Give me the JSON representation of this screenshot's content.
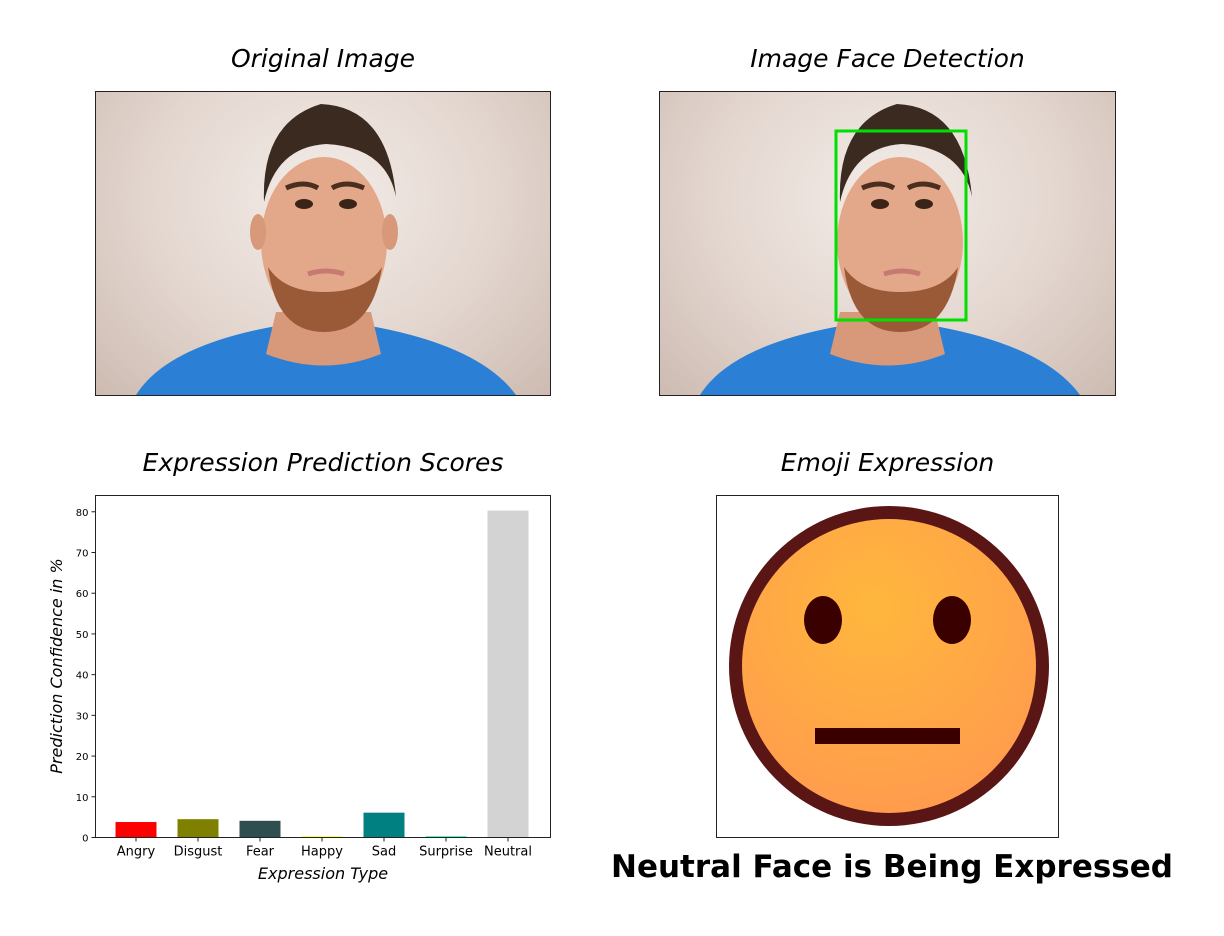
{
  "titles": {
    "original": "Original Image",
    "detection": "Image Face Detection",
    "scores": "Expression Prediction Scores",
    "emoji": "Emoji Expression"
  },
  "result_caption": "Neutral Face is Being Expressed",
  "colors": {
    "detection_box": "#00e000",
    "emoji_face": "#ffa84a",
    "emoji_rim": "#5a1515",
    "emoji_features": "#3a0000"
  },
  "chart_data": {
    "type": "bar",
    "title": "Expression Prediction Scores",
    "xlabel": "Expression Type",
    "ylabel": "Prediction Confidence in %",
    "categories": [
      "Angry",
      "Disgust",
      "Fear",
      "Happy",
      "Sad",
      "Surprise",
      "Neutral"
    ],
    "values": [
      3.8,
      4.5,
      4.1,
      0.3,
      6.1,
      0.3,
      80.3
    ],
    "colors": [
      "#ff0000",
      "#808000",
      "#2f4f4f",
      "#ffff00",
      "#008080",
      "#00fa9a",
      "#d3d3d3"
    ],
    "ylim": [
      0,
      84
    ],
    "yticks": [
      0,
      10,
      20,
      30,
      40,
      50,
      60,
      70,
      80
    ],
    "grid": false
  }
}
